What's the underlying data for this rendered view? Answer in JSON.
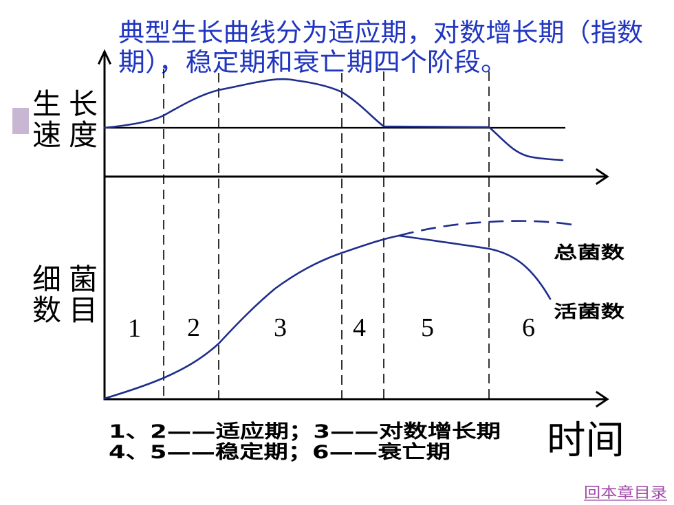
{
  "slide": {
    "title_lines": [
      "典型生长曲线分为适应期，对数增长期（指数",
      "期），稳定期和衰亡期四个阶段。"
    ],
    "link_label": "回本章目录"
  },
  "diagram": {
    "growth_rate_label_lines": [
      "生长",
      "速度"
    ],
    "cell_count_label_lines": [
      "细菌",
      "数目"
    ],
    "time_axis_label": "时间",
    "phase_numbers": [
      "1",
      "2",
      "3",
      "4",
      "5",
      "6"
    ],
    "curve_labels": {
      "total": "总菌数",
      "viable": "活菌数"
    },
    "legend_lines": [
      "1、2——适应期；3——对数增长期",
      "4、5——稳定期；6——衰亡期"
    ]
  },
  "colors": {
    "title_text": "#2035c0",
    "curve": "#1f2d8c",
    "axis": "#000000",
    "link": "#a04aa8",
    "bullet_square": "#c9b6d3"
  }
}
